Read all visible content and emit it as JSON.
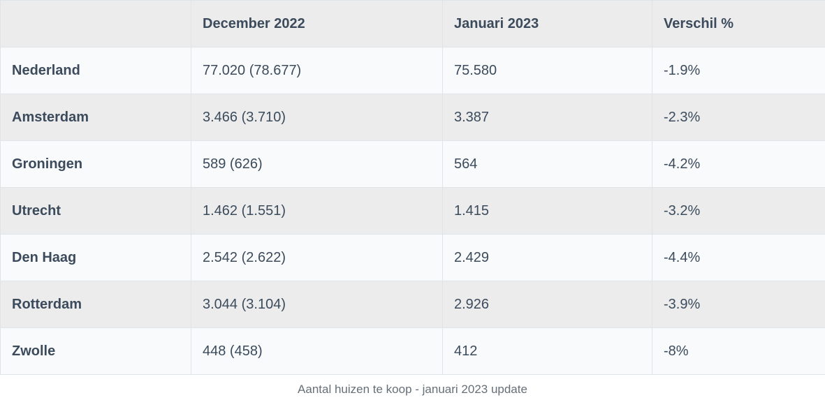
{
  "chart_data": {
    "type": "table",
    "title": "Aantal huizen te koop - januari 2023 update",
    "columns": [
      "",
      "December 2022",
      "Januari 2023",
      "Verschil %"
    ],
    "rows": [
      {
        "label": "Nederland",
        "december_2022": "77.020 (78.677)",
        "januari_2023": "75.580",
        "verschil": "-1.9%"
      },
      {
        "label": "Amsterdam",
        "december_2022": "3.466 (3.710)",
        "januari_2023": "3.387",
        "verschil": "-2.3%"
      },
      {
        "label": "Groningen",
        "december_2022": "589 (626)",
        "januari_2023": "564",
        "verschil": "-4.2%"
      },
      {
        "label": "Utrecht",
        "december_2022": "1.462 (1.551)",
        "januari_2023": "1.415",
        "verschil": "-3.2%"
      },
      {
        "label": "Den Haag",
        "december_2022": "2.542 (2.622)",
        "januari_2023": "2.429",
        "verschil": "-4.4%"
      },
      {
        "label": "Rotterdam",
        "december_2022": "3.044 (3.104)",
        "januari_2023": "2.926",
        "verschil": "-3.9%"
      },
      {
        "label": "Zwolle",
        "december_2022": "448 (458)",
        "januari_2023": "412",
        "verschil": "-8%"
      }
    ],
    "layout": {
      "legend": "none",
      "grid": "cell-borders",
      "caption_position": "bottom-center"
    }
  },
  "colors": {
    "header_bg": "#ececec",
    "row_bg": "#f9fafb",
    "row_alt_bg": "#ececec",
    "border": "#dfe4e9",
    "text": "#3c4b5c",
    "caption_text": "#666f77",
    "page_bg": "#ffffff"
  }
}
